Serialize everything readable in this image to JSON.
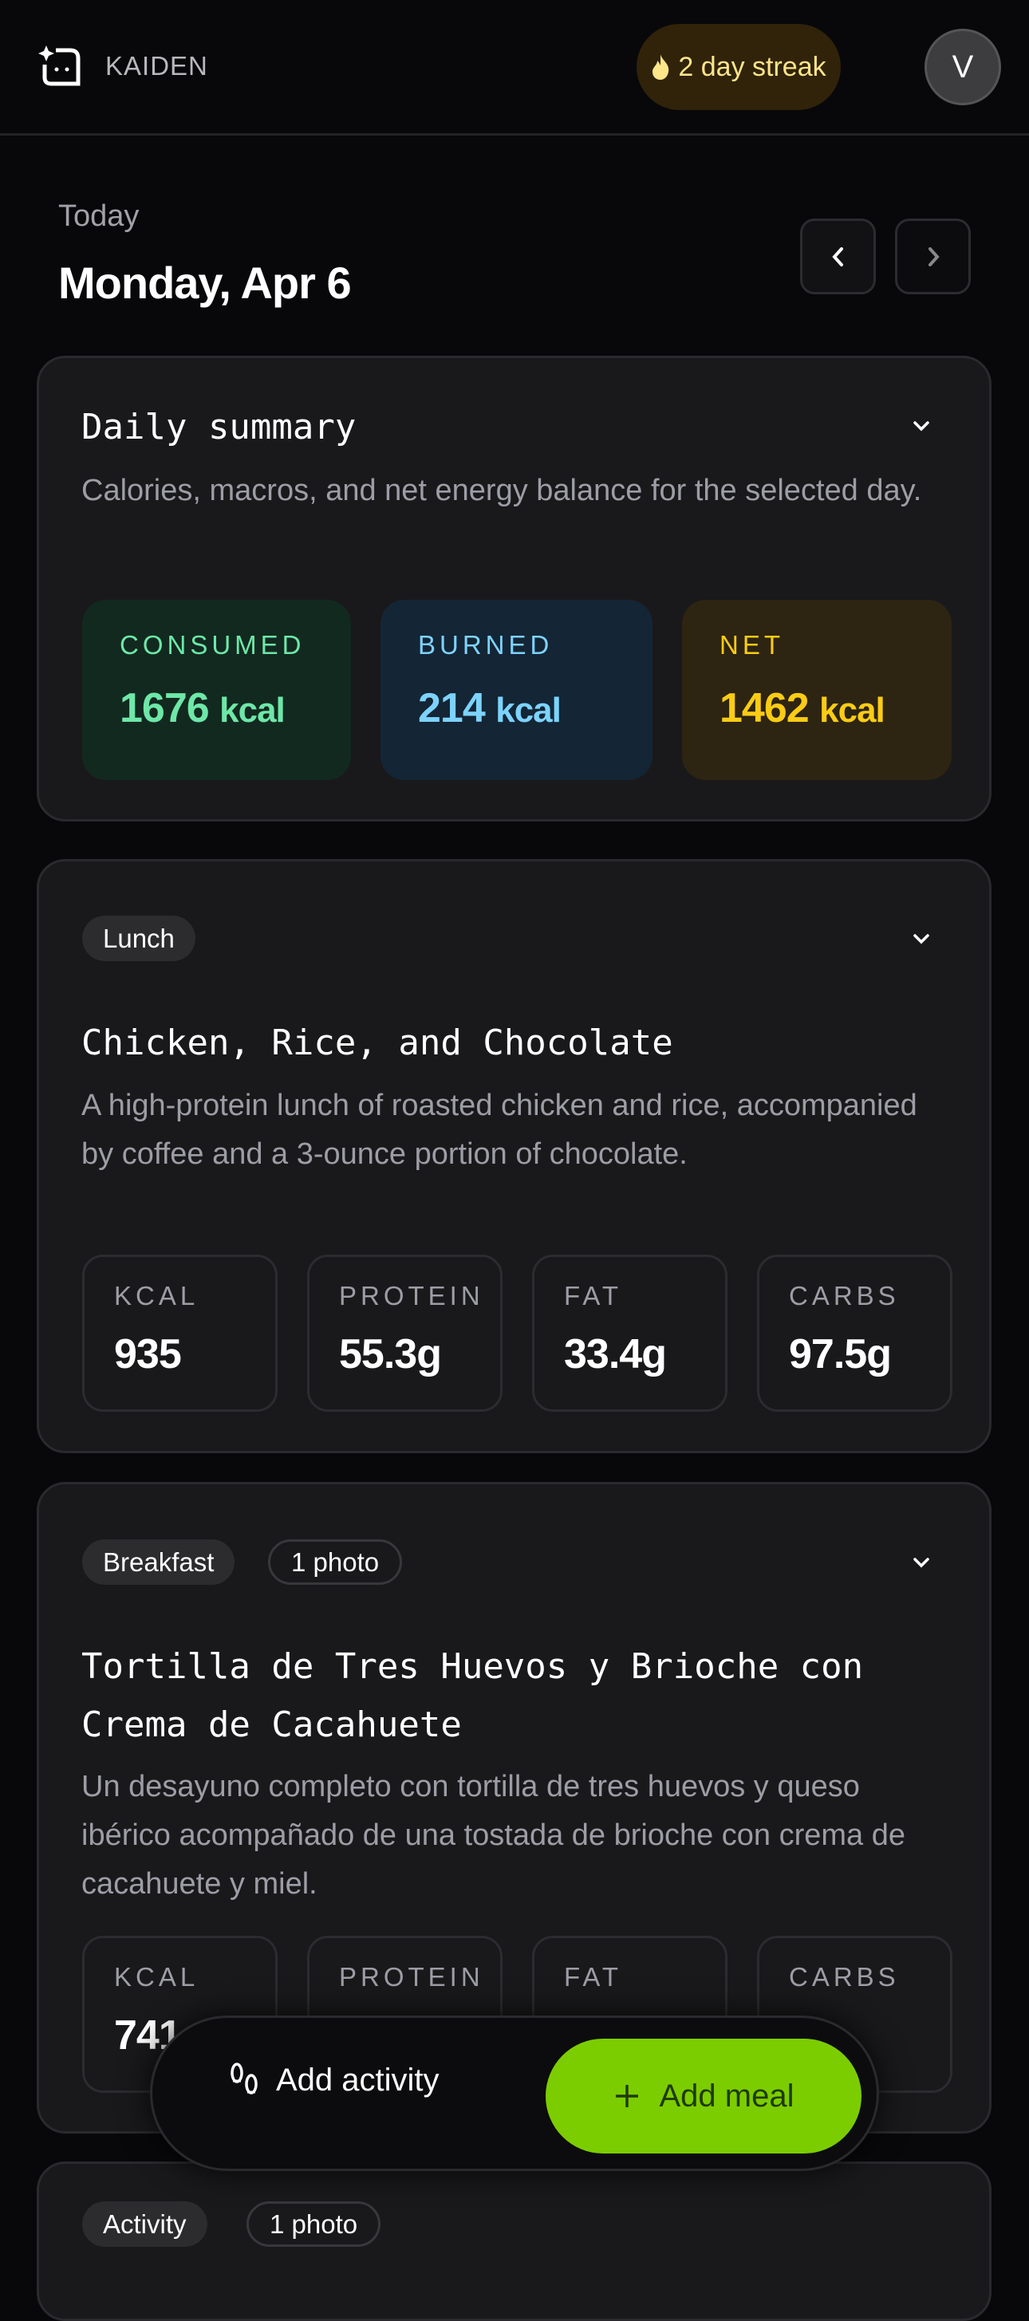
{
  "header": {
    "brand": "KAIDEN",
    "streak": "2 day streak",
    "avatar_initial": "V"
  },
  "date": {
    "label": "Today",
    "value": "Monday, Apr 6"
  },
  "summary": {
    "title": "Daily summary",
    "description": "Calories, macros, and net energy balance for the selected day.",
    "stats": [
      {
        "label": "CONSUMED",
        "value": "1676",
        "unit": "kcal",
        "color": "#6ee7a8"
      },
      {
        "label": "BURNED",
        "value": "214",
        "unit": "kcal",
        "color": "#7dd3fc"
      },
      {
        "label": "NET",
        "value": "1462",
        "unit": "kcal",
        "color": "#facc15"
      }
    ]
  },
  "meals": [
    {
      "chips": [
        "Lunch"
      ],
      "title": "Chicken, Rice, and Chocolate",
      "description": "A high-protein lunch of roasted chicken and rice, accompanied by coffee and a 3-ounce portion of chocolate.",
      "macros": [
        {
          "label": "KCAL",
          "value": "935"
        },
        {
          "label": "PROTEIN",
          "value": "55.3g"
        },
        {
          "label": "FAT",
          "value": "33.4g"
        },
        {
          "label": "CARBS",
          "value": "97.5g"
        }
      ]
    },
    {
      "chips": [
        "Breakfast",
        "1 photo"
      ],
      "title": "Tortilla de Tres Huevos y Brioche con Crema de Cacahuete",
      "description": "Un desayuno completo con tortilla de tres huevos y queso ibérico acompañado de una tostada de brioche con crema de cacahuete y miel.",
      "macros": [
        {
          "label": "KCAL",
          "value": "741"
        },
        {
          "label": "PROTEIN",
          "value": ""
        },
        {
          "label": "FAT",
          "value": ""
        },
        {
          "label": "CARBS",
          "value": ""
        }
      ]
    },
    {
      "chips": [
        "Activity",
        "1 photo"
      ]
    }
  ],
  "actions": {
    "add_activity": "Add activity",
    "add_meal": "Add meal"
  },
  "colors": {
    "accent": "#7ccd00",
    "streak": "#fde58a"
  }
}
